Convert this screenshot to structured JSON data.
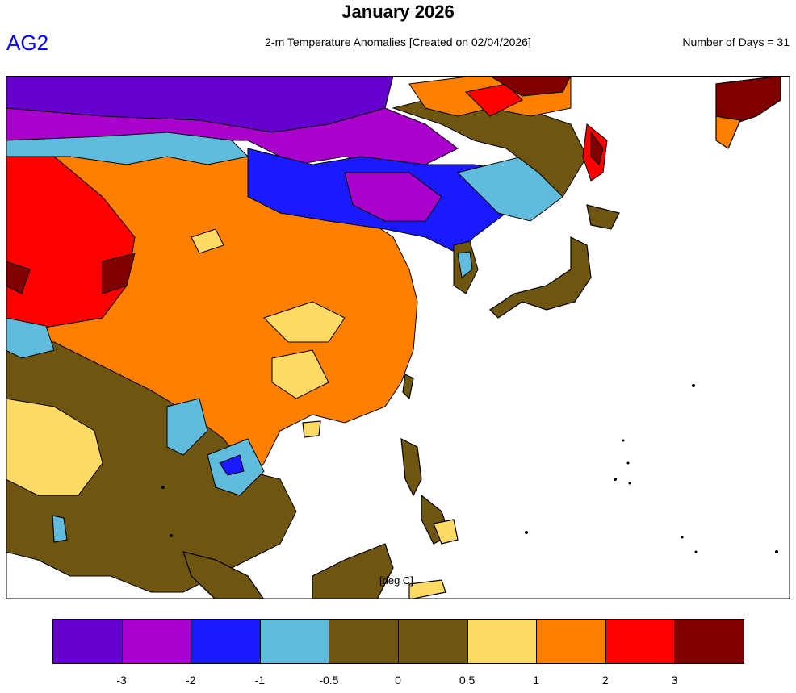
{
  "header": {
    "title": "January 2026",
    "model": "AG2",
    "subtitle": "2-m Temperature Anomalies [Created on 02/04/2026]",
    "days": "Number of Days = 31"
  },
  "map": {
    "units": "[deg C]"
  },
  "legend": {
    "colors": [
      "#6600cc",
      "#aa00cc",
      "#1a1aff",
      "#60bcdc",
      "#6e5510",
      "#6e5510",
      "#ffdb66",
      "#ff8000",
      "#ff0000",
      "#800000"
    ],
    "labels": [
      "-3",
      "-2",
      "-1",
      "-0.5",
      "0",
      "0.5",
      "1",
      "2",
      "3"
    ]
  }
}
